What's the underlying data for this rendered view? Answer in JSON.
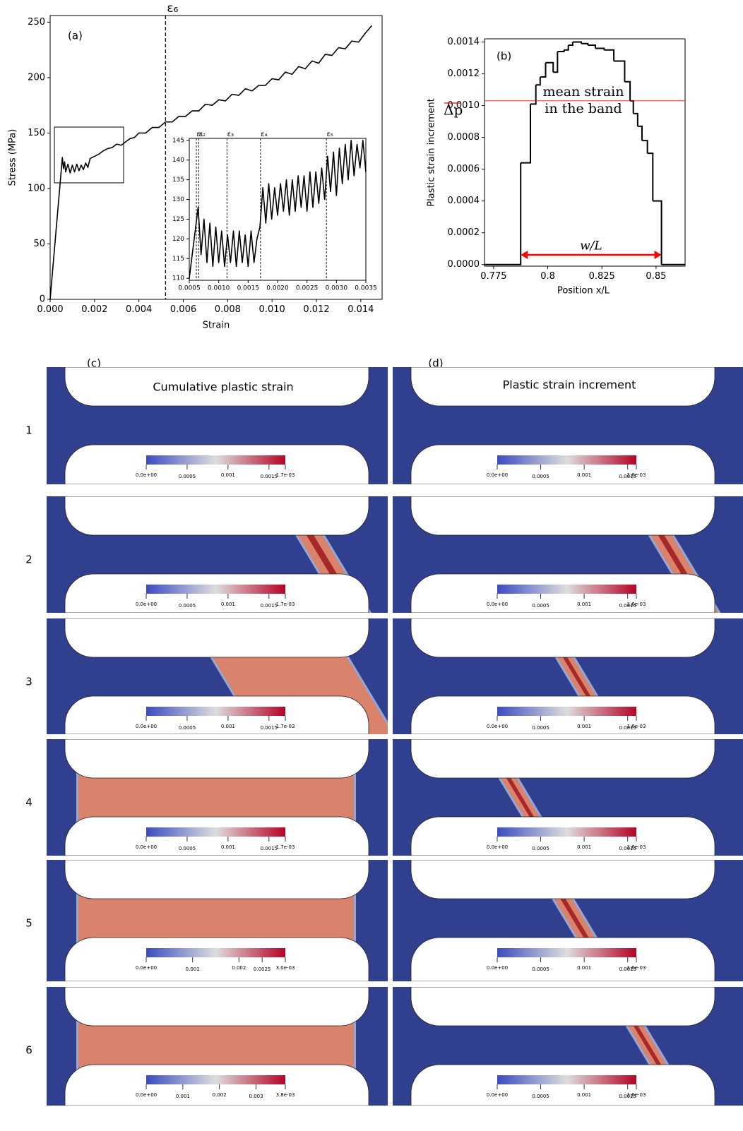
{
  "chart_data": [
    {
      "type": "line",
      "annotation": "(a)",
      "xlabel": "Strain",
      "ylabel": "Stress (MPa)",
      "xlim": [
        0,
        0.01496
      ],
      "ylim": [
        0,
        256
      ],
      "xticks": [
        {
          "value": 0,
          "label": "0.000"
        },
        {
          "value": 0.002,
          "label": "0.002"
        },
        {
          "value": 0.004,
          "label": "0.004"
        },
        {
          "value": 0.006,
          "label": "0.006"
        },
        {
          "value": 0.008,
          "label": "0.008"
        },
        {
          "value": 0.01,
          "label": "0.010"
        },
        {
          "value": 0.012,
          "label": "0.012"
        },
        {
          "value": 0.014,
          "label": "0.014"
        }
      ],
      "yticks": [
        0,
        50,
        100,
        150,
        200,
        250
      ],
      "color": "#000000",
      "x": [
        0,
        0.00055,
        0.0006,
        0.00065,
        0.0007,
        0.0008,
        0.0009,
        0.001,
        0.0011,
        0.0012,
        0.0013,
        0.0014,
        0.0015,
        0.0016,
        0.0017,
        0.0018,
        0.002,
        0.0022,
        0.0024,
        0.0026,
        0.0028,
        0.003,
        0.0032,
        0.0034,
        0.0036,
        0.0038,
        0.004,
        0.0043,
        0.0046,
        0.0049,
        0.0052,
        0.0055,
        0.0058,
        0.0061,
        0.0064,
        0.0067,
        0.007,
        0.0073,
        0.0076,
        0.0079,
        0.0082,
        0.0085,
        0.0088,
        0.0091,
        0.0094,
        0.0097,
        0.01,
        0.0103,
        0.0106,
        0.0109,
        0.0112,
        0.0115,
        0.0118,
        0.0121,
        0.0124,
        0.0127,
        0.013,
        0.0133,
        0.0136,
        0.0139,
        0.0142,
        0.0145
      ],
      "values": [
        0,
        128,
        118,
        124,
        115,
        122,
        114,
        121,
        115,
        122,
        116,
        121,
        117,
        123,
        119,
        127,
        129,
        131,
        134,
        136,
        137,
        140,
        139,
        142,
        145,
        146,
        150,
        150,
        155,
        155,
        160,
        160,
        165,
        165,
        170,
        170,
        176,
        175,
        180,
        179,
        185,
        184,
        190,
        188,
        193,
        193,
        199,
        198,
        205,
        203,
        210,
        208,
        215,
        213,
        221,
        220,
        227,
        226,
        233,
        232,
        240,
        247
      ],
      "vlines": [
        {
          "x": 0.0052,
          "label": "ε₆"
        }
      ],
      "inset": {
        "xlim": [
          0.0005,
          0.0035
        ],
        "ylim": [
          109.5,
          145.5
        ],
        "xticks": [
          {
            "value": 0.0005,
            "label": "0.0005"
          },
          {
            "value": 0.001,
            "label": "0.0010"
          },
          {
            "value": 0.0015,
            "label": "0.0015"
          },
          {
            "value": 0.002,
            "label": "0.0020"
          },
          {
            "value": 0.0025,
            "label": "0.0025"
          },
          {
            "value": 0.003,
            "label": "0.0030"
          },
          {
            "value": 0.0035,
            "label": "0.0035"
          }
        ],
        "yticks": [
          110,
          115,
          120,
          125,
          130,
          135,
          140,
          145
        ],
        "color": "#000000",
        "x": [
          0.0005,
          0.00065,
          0.0007,
          0.00075,
          0.0008,
          0.00085,
          0.0009,
          0.00095,
          0.001,
          0.00105,
          0.0011,
          0.00115,
          0.0012,
          0.00125,
          0.0013,
          0.00135,
          0.0014,
          0.00145,
          0.0015,
          0.00155,
          0.0016,
          0.00165,
          0.0017,
          0.00175,
          0.0018,
          0.00185,
          0.0019,
          0.00195,
          0.002,
          0.00205,
          0.0021,
          0.00215,
          0.0022,
          0.00225,
          0.0023,
          0.00235,
          0.0024,
          0.00245,
          0.0025,
          0.00255,
          0.0026,
          0.00265,
          0.0027,
          0.00275,
          0.0028,
          0.00285,
          0.0029,
          0.00295,
          0.003,
          0.00305,
          0.0031,
          0.00315,
          0.0032,
          0.00325,
          0.0033,
          0.00335,
          0.0034,
          0.00345,
          0.0035
        ],
        "values": [
          110,
          128,
          116,
          125,
          114,
          124,
          113,
          123,
          114,
          122,
          113,
          121,
          114,
          122,
          113,
          122,
          114,
          121,
          113,
          122,
          114,
          120,
          123,
          133,
          124,
          134,
          125,
          133,
          126,
          134,
          127,
          135,
          126,
          135,
          127,
          136,
          128,
          136,
          127,
          137,
          128,
          137,
          129,
          138,
          130,
          141,
          132,
          142,
          131,
          143,
          134,
          144,
          135,
          145,
          136,
          144,
          138,
          145,
          137
        ],
        "vlines": [
          {
            "x": 0.00062,
            "label": "ε₁"
          },
          {
            "x": 0.00066,
            "label": "ε₂"
          },
          {
            "x": 0.00114,
            "label": "ε₃"
          },
          {
            "x": 0.00171,
            "label": "ε₄"
          },
          {
            "x": 0.00283,
            "label": "ε₅"
          }
        ]
      }
    },
    {
      "type": "line",
      "drawstyle": "steps-post",
      "annotation": "(b)",
      "xlabel": "Position x/L",
      "ylabel": "Plastic strain increment",
      "xlim": [
        0.7708,
        0.8634
      ],
      "ylim": [
        -1e-05,
        0.00142
      ],
      "xticks": [
        0.775,
        0.8,
        0.825,
        0.85
      ],
      "yticks": [
        {
          "value": 0,
          "label": "0.0000"
        },
        {
          "value": 0.0002,
          "label": "0.0002"
        },
        {
          "value": 0.0004,
          "label": "0.0004"
        },
        {
          "value": 0.0006,
          "label": "0.0006"
        },
        {
          "value": 0.0008,
          "label": "0.0008"
        },
        {
          "value": 0.001,
          "label": "0.0010"
        },
        {
          "value": 0.0012,
          "label": "0.0012"
        },
        {
          "value": 0.0014,
          "label": "0.0014"
        }
      ],
      "color": "#000000",
      "x": [
        0.7708,
        0.7875,
        0.792,
        0.7945,
        0.7965,
        0.799,
        0.8025,
        0.8045,
        0.8075,
        0.8095,
        0.8115,
        0.8155,
        0.8185,
        0.822,
        0.826,
        0.8305,
        0.8355,
        0.838,
        0.8395,
        0.8415,
        0.8435,
        0.846,
        0.8485,
        0.8525,
        0.8634
      ],
      "values": [
        0,
        0.00064,
        0.00101,
        0.00113,
        0.00118,
        0.00127,
        0.00121,
        0.00134,
        0.00135,
        0.00138,
        0.0014,
        0.00139,
        0.00138,
        0.00136,
        0.00135,
        0.00128,
        0.00115,
        0.00103,
        0.00095,
        0.00087,
        0.00078,
        0.0007,
        0.0004,
        0,
        0
      ],
      "hline": {
        "value": 0.00103,
        "color": "#ff0000",
        "label": "Δp"
      },
      "note": [
        "mean strain",
        "in the band"
      ],
      "span": {
        "from": 0.7875,
        "to": 0.8525,
        "label": "w/L",
        "color": "#ff0000"
      }
    }
  ],
  "panels": [
    {
      "label": "(c)",
      "title": "Cumulative plastic strain",
      "rows": [
        {
          "label": "1",
          "colorbar": {
            "lim": [
              0,
              0.0017
            ],
            "ticks": [
              {
                "value": 0,
                "label": "0.0e+00"
              },
              0.0005,
              0.001,
              0.0015,
              {
                "value": 0.0017,
                "label": "1.7e-03"
              }
            ]
          }
        },
        {
          "label": "2",
          "colorbar": {
            "lim": [
              0,
              0.0017
            ],
            "ticks": [
              {
                "value": 0,
                "label": "0.0e+00"
              },
              0.0005,
              0.001,
              0.0015,
              {
                "value": 0.0017,
                "label": "1.7e-03"
              }
            ]
          }
        },
        {
          "label": "3",
          "colorbar": {
            "lim": [
              0,
              0.0017
            ],
            "ticks": [
              {
                "value": 0,
                "label": "0.0e+00"
              },
              0.0005,
              0.001,
              0.0015,
              {
                "value": 0.0017,
                "label": "1.7e-03"
              }
            ]
          }
        },
        {
          "label": "4",
          "colorbar": {
            "lim": [
              0,
              0.0017
            ],
            "ticks": [
              {
                "value": 0,
                "label": "0.0e+00"
              },
              0.0005,
              0.001,
              0.0015,
              {
                "value": 0.0017,
                "label": "1.7e-03"
              }
            ]
          }
        },
        {
          "label": "5",
          "colorbar": {
            "lim": [
              0,
              0.003
            ],
            "ticks": [
              {
                "value": 0,
                "label": "0.0e+00"
              },
              0.001,
              0.002,
              0.0025,
              {
                "value": 0.003,
                "label": "3.0e-03"
              }
            ]
          }
        },
        {
          "label": "6",
          "colorbar": {
            "lim": [
              0,
              0.0038
            ],
            "ticks": [
              {
                "value": 0,
                "label": "0.0e+00"
              },
              0.001,
              0.002,
              0.003,
              {
                "value": 0.0038,
                "label": "3.8e-03"
              }
            ]
          }
        }
      ]
    },
    {
      "label": "(d)",
      "title": "Plastic strain increment",
      "rows": [
        {
          "colorbar": {
            "lim": [
              0,
              0.0016
            ],
            "ticks": [
              {
                "value": 0,
                "label": "0.0e+00"
              },
              0.0005,
              0.001,
              0.0015,
              {
                "value": 0.0016,
                "label": "1.6e-03"
              }
            ]
          }
        },
        {
          "colorbar": {
            "lim": [
              0,
              0.0016
            ],
            "ticks": [
              {
                "value": 0,
                "label": "0.0e+00"
              },
              0.0005,
              0.001,
              0.0015,
              {
                "value": 0.0016,
                "label": "1.6e-03"
              }
            ]
          }
        },
        {
          "colorbar": {
            "lim": [
              0,
              0.0016
            ],
            "ticks": [
              {
                "value": 0,
                "label": "0.0e+00"
              },
              0.0005,
              0.001,
              0.0015,
              {
                "value": 0.0016,
                "label": "1.6e-03"
              }
            ]
          }
        },
        {
          "colorbar": {
            "lim": [
              0,
              0.0016
            ],
            "ticks": [
              {
                "value": 0,
                "label": "0.0e+00"
              },
              0.0005,
              0.001,
              0.0015,
              {
                "value": 0.0016,
                "label": "1.6e-03"
              }
            ]
          }
        },
        {
          "colorbar": {
            "lim": [
              0,
              0.0016
            ],
            "ticks": [
              {
                "value": 0,
                "label": "0.0e+00"
              },
              0.0005,
              0.001,
              0.0015,
              {
                "value": 0.0016,
                "label": "1.6e-03"
              }
            ]
          }
        },
        {
          "colorbar": {
            "lim": [
              0,
              0.0016
            ],
            "ticks": [
              {
                "value": 0,
                "label": "0.0e+00"
              },
              0.0005,
              0.001,
              0.0015,
              {
                "value": 0.0016,
                "label": "1.6e-03"
              }
            ]
          }
        }
      ]
    }
  ]
}
